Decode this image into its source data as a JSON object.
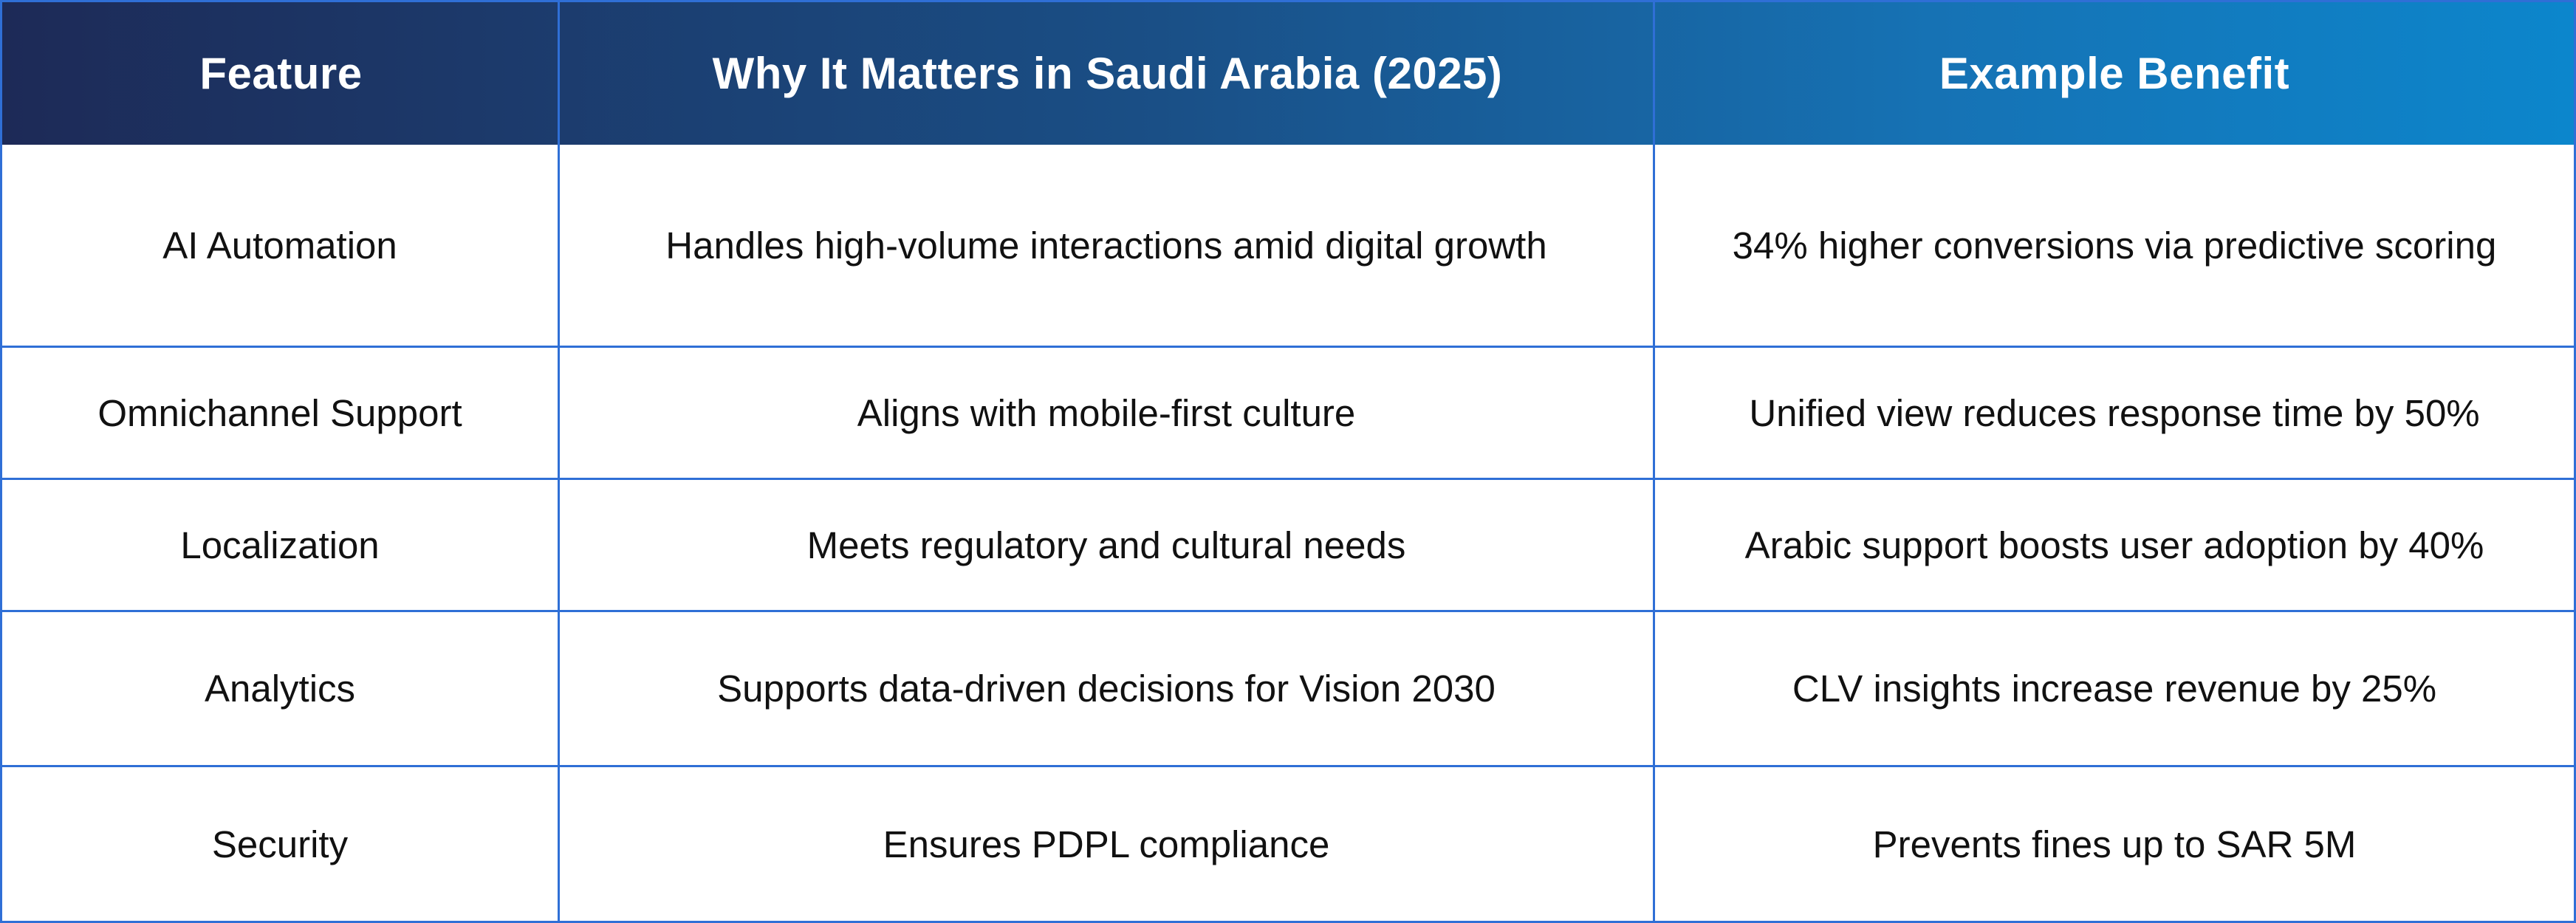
{
  "columns": [
    "Feature",
    "Why It Matters in Saudi Arabia (2025)",
    "Example Benefit"
  ],
  "rows": [
    {
      "feature": "AI Automation",
      "why": "Handles high-volume interactions amid digital growth",
      "benefit": "34% higher conversions via predictive scoring"
    },
    {
      "feature": "Omnichannel Support",
      "why": "Aligns with mobile-first culture",
      "benefit": "Unified view reduces response time by 50%"
    },
    {
      "feature": "Localization",
      "why": "Meets regulatory and cultural needs",
      "benefit": "Arabic support boosts user adoption by 40%"
    },
    {
      "feature": "Analytics",
      "why": "Supports data-driven decisions for Vision 2030",
      "benefit": "CLV insights increase revenue by 25%"
    },
    {
      "feature": "Security",
      "why": "Ensures PDPL compliance",
      "benefit": "Prevents fines up to SAR 5M"
    }
  ],
  "colors": {
    "header_gradient_start": "#1d2a57",
    "header_gradient_end": "#0c86cc",
    "grid_line": "#2f6fd6",
    "header_text": "#ffffff",
    "body_text": "#111111"
  }
}
